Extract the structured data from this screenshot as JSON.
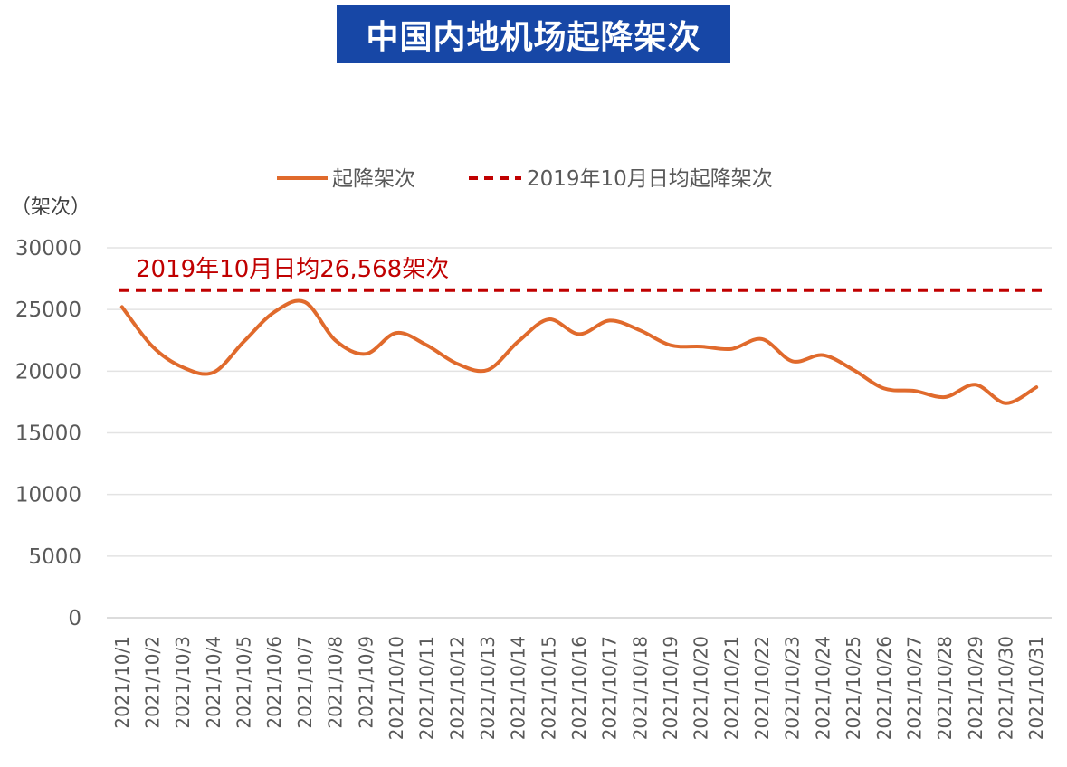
{
  "colors": {
    "title_bg": "#1747a6",
    "title_text": "#ffffff",
    "series_line": "#e06a2c",
    "reference_line": "#c00000",
    "axis_text": "#595959",
    "grid": "#e3e3e3"
  },
  "chart_data": {
    "type": "line",
    "title": "中国内地机场起降架次",
    "ylabel": "（架次）",
    "ylim": [
      0,
      30000
    ],
    "yticks": [
      0,
      5000,
      10000,
      15000,
      20000,
      25000,
      30000
    ],
    "grid": true,
    "legend_position": "top-center",
    "x": [
      "2021/10/1",
      "2021/10/2",
      "2021/10/3",
      "2021/10/4",
      "2021/10/5",
      "2021/10/6",
      "2021/10/7",
      "2021/10/8",
      "2021/10/9",
      "2021/10/10",
      "2021/10/11",
      "2021/10/12",
      "2021/10/13",
      "2021/10/14",
      "2021/10/15",
      "2021/10/16",
      "2021/10/17",
      "2021/10/18",
      "2021/10/19",
      "2021/10/20",
      "2021/10/21",
      "2021/10/22",
      "2021/10/23",
      "2021/10/24",
      "2021/10/25",
      "2021/10/26",
      "2021/10/27",
      "2021/10/28",
      "2021/10/29",
      "2021/10/30",
      "2021/10/31"
    ],
    "series": [
      {
        "name": "起降架次",
        "style": "solid",
        "values": [
          25200,
          22000,
          20300,
          19900,
          22400,
          24800,
          25600,
          22500,
          21400,
          23100,
          22100,
          20600,
          20100,
          22400,
          24200,
          23000,
          24100,
          23300,
          22100,
          22000,
          21800,
          22600,
          20800,
          21300,
          20100,
          18600,
          18400,
          17900,
          18900,
          17400,
          18700
        ]
      },
      {
        "name": "2019年10月日均起降架次",
        "style": "dashed",
        "value": 26568
      }
    ],
    "annotations": [
      {
        "text": "2019年10月日均26,568架次"
      }
    ]
  }
}
